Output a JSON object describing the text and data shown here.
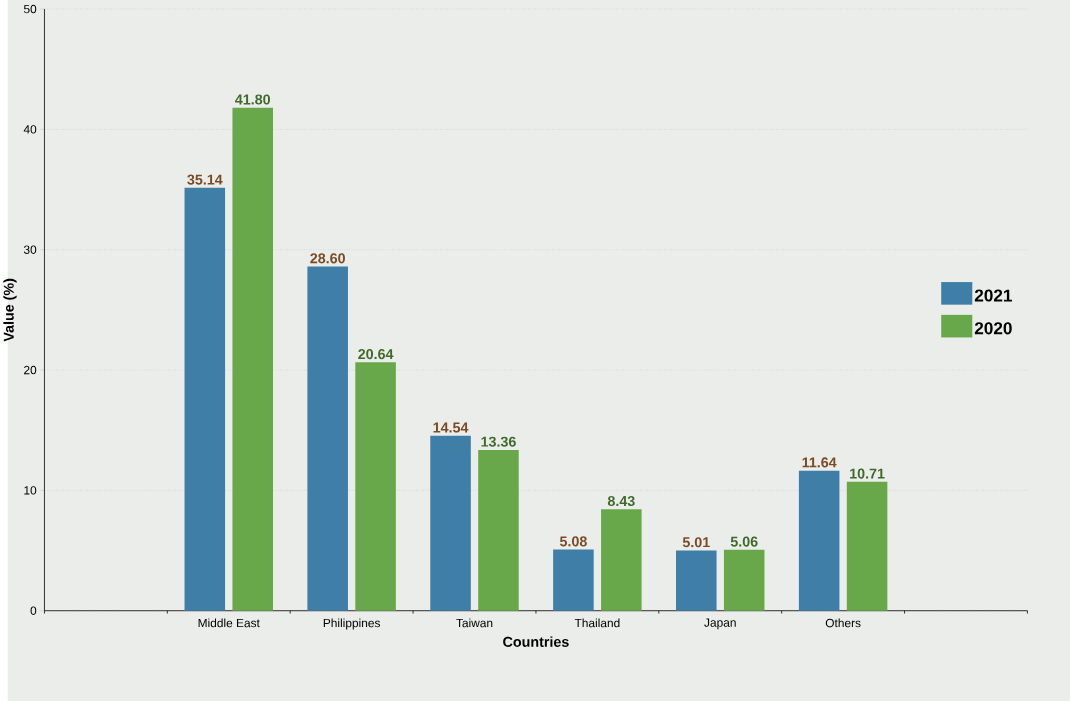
{
  "chart_data": {
    "type": "bar",
    "xlabel": "Countries",
    "ylabel": "Value (%)",
    "categories": [
      null,
      "Middle East",
      "Philippines",
      "Taiwan",
      "Thailand",
      "Japan",
      "Others",
      null
    ],
    "series": [
      {
        "name": "2021",
        "color": "#3f7ea6",
        "values": [
          null,
          35.14,
          28.6,
          14.54,
          5.08,
          5.01,
          11.64,
          null
        ],
        "value_labels": [
          null,
          "35.14",
          "28.60",
          "14.54",
          "5.08",
          "5.01",
          "11.64",
          null
        ]
      },
      {
        "name": "2020",
        "color": "#69a84a",
        "values": [
          null,
          41.8,
          20.64,
          13.36,
          8.43,
          5.06,
          10.71,
          null
        ],
        "value_labels": [
          null,
          "41.80",
          "20.64",
          "13.36",
          "8.43",
          "5.06",
          "10.71",
          null
        ]
      }
    ],
    "ylim": [
      0,
      50
    ],
    "yticks": [
      0,
      10,
      20,
      30,
      40,
      50
    ],
    "grid": "y",
    "legend": "right"
  }
}
